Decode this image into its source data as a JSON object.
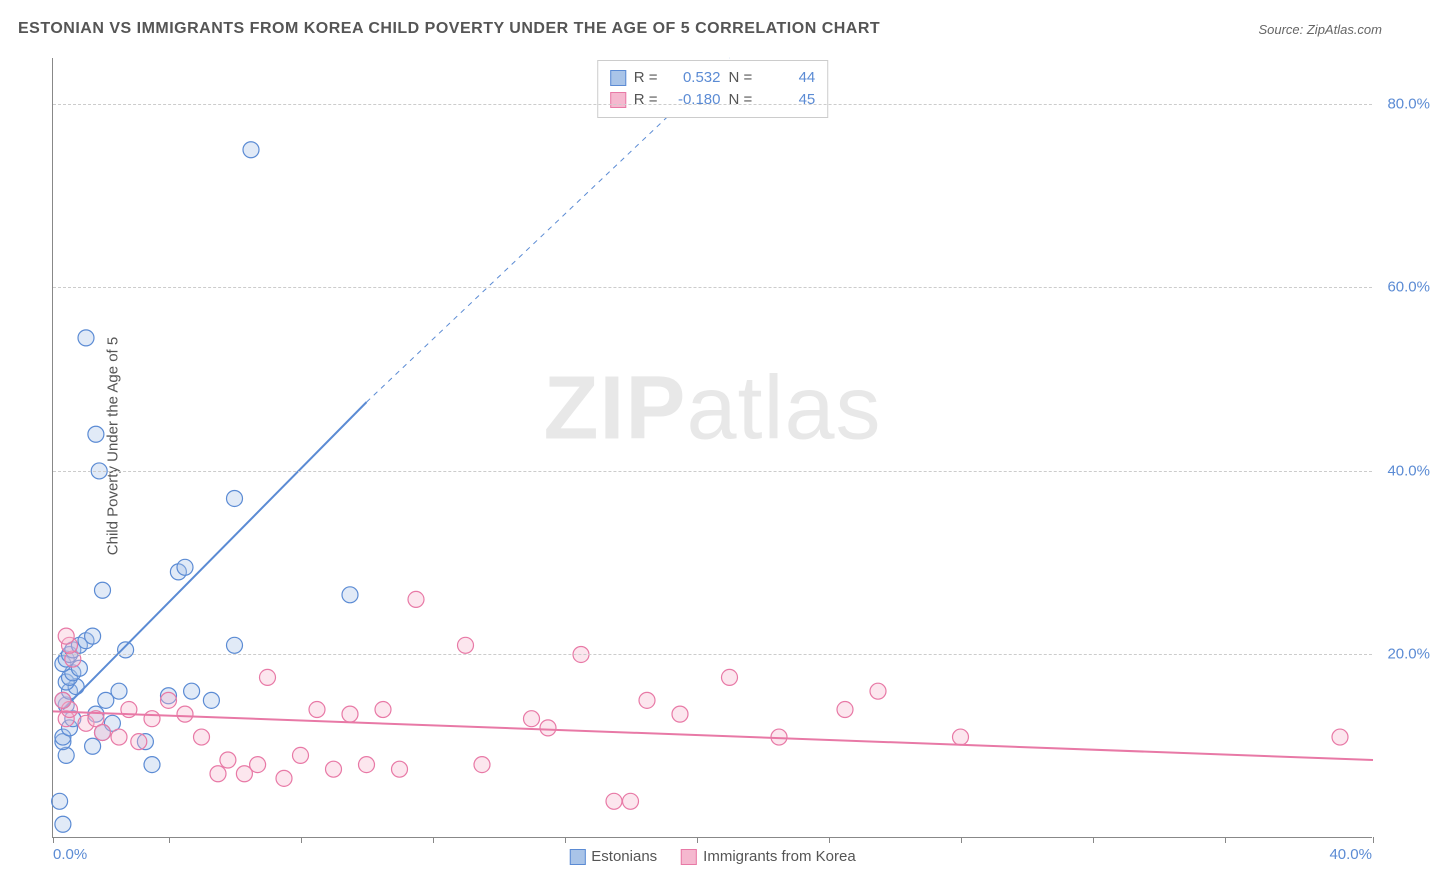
{
  "title": "ESTONIAN VS IMMIGRANTS FROM KOREA CHILD POVERTY UNDER THE AGE OF 5 CORRELATION CHART",
  "source_label": "Source: ",
  "source_value": "ZipAtlas.com",
  "ylabel": "Child Poverty Under the Age of 5",
  "watermark_bold": "ZIP",
  "watermark_rest": "atlas",
  "chart": {
    "type": "scatter",
    "background_color": "#ffffff",
    "grid_color": "#cccccc",
    "axis_color": "#888888",
    "xlim": [
      0,
      40
    ],
    "ylim": [
      0,
      85
    ],
    "ytick_values": [
      20,
      40,
      60,
      80
    ],
    "ytick_labels": [
      "20.0%",
      "40.0%",
      "60.0%",
      "80.0%"
    ],
    "xtick_positions": [
      0,
      3.5,
      7.5,
      11.5,
      15.5,
      19.5,
      23.5,
      27.5,
      31.5,
      35.5,
      40
    ],
    "xtick_label_left": "0.0%",
    "xtick_label_right": "40.0%",
    "marker_radius": 8,
    "marker_fill_opacity": 0.35,
    "marker_stroke_width": 1.2,
    "series": [
      {
        "key": "estonians",
        "label": "Estonians",
        "color": "#5b8bd4",
        "fill": "#a9c4e8",
        "R": "0.532",
        "N": "44",
        "points": [
          [
            0.3,
            1.5
          ],
          [
            0.2,
            4.0
          ],
          [
            0.4,
            9.0
          ],
          [
            0.3,
            10.5
          ],
          [
            0.3,
            11.0
          ],
          [
            0.5,
            12.0
          ],
          [
            0.6,
            13.0
          ],
          [
            0.4,
            14.5
          ],
          [
            0.3,
            15.0
          ],
          [
            0.5,
            16.0
          ],
          [
            0.7,
            16.5
          ],
          [
            0.4,
            17.0
          ],
          [
            0.5,
            17.5
          ],
          [
            0.6,
            18.0
          ],
          [
            0.8,
            18.5
          ],
          [
            0.3,
            19.0
          ],
          [
            0.4,
            19.5
          ],
          [
            0.5,
            20.0
          ],
          [
            0.6,
            20.5
          ],
          [
            0.8,
            21.0
          ],
          [
            1.2,
            10.0
          ],
          [
            1.5,
            11.5
          ],
          [
            1.8,
            12.5
          ],
          [
            1.3,
            13.5
          ],
          [
            1.6,
            15.0
          ],
          [
            2.0,
            16.0
          ],
          [
            1.0,
            21.5
          ],
          [
            1.2,
            22.0
          ],
          [
            1.5,
            27.0
          ],
          [
            2.2,
            20.5
          ],
          [
            2.8,
            10.5
          ],
          [
            3.0,
            8.0
          ],
          [
            3.5,
            15.5
          ],
          [
            4.2,
            16.0
          ],
          [
            5.5,
            21.0
          ],
          [
            3.8,
            29.0
          ],
          [
            4.0,
            29.5
          ],
          [
            5.5,
            37.0
          ],
          [
            1.4,
            40.0
          ],
          [
            1.3,
            44.0
          ],
          [
            1.0,
            54.5
          ],
          [
            6.0,
            75.0
          ],
          [
            9.0,
            26.5
          ],
          [
            4.8,
            15.0
          ]
        ],
        "trend": {
          "x1": 0.3,
          "y1": 14.0,
          "x2": 9.5,
          "y2": 47.5
        },
        "trend_dash": {
          "x1": 9.5,
          "y1": 47.5,
          "x2": 20.5,
          "y2": 85.0
        },
        "line_width": 2
      },
      {
        "key": "korea",
        "label": "Immigrants from Korea",
        "color": "#e879a6",
        "fill": "#f5b8cf",
        "R": "-0.180",
        "N": "45",
        "points": [
          [
            0.4,
            13.0
          ],
          [
            0.5,
            14.0
          ],
          [
            0.3,
            15.0
          ],
          [
            0.6,
            19.5
          ],
          [
            0.5,
            21.0
          ],
          [
            0.4,
            22.0
          ],
          [
            1.0,
            12.5
          ],
          [
            1.3,
            13.0
          ],
          [
            1.5,
            11.5
          ],
          [
            2.0,
            11.0
          ],
          [
            2.3,
            14.0
          ],
          [
            2.6,
            10.5
          ],
          [
            3.0,
            13.0
          ],
          [
            3.5,
            15.0
          ],
          [
            4.0,
            13.5
          ],
          [
            4.5,
            11.0
          ],
          [
            5.0,
            7.0
          ],
          [
            5.3,
            8.5
          ],
          [
            5.8,
            7.0
          ],
          [
            6.2,
            8.0
          ],
          [
            6.5,
            17.5
          ],
          [
            7.0,
            6.5
          ],
          [
            7.5,
            9.0
          ],
          [
            8.0,
            14.0
          ],
          [
            8.5,
            7.5
          ],
          [
            9.0,
            13.5
          ],
          [
            9.5,
            8.0
          ],
          [
            10.0,
            14.0
          ],
          [
            10.5,
            7.5
          ],
          [
            11.0,
            26.0
          ],
          [
            12.5,
            21.0
          ],
          [
            13.0,
            8.0
          ],
          [
            14.5,
            13.0
          ],
          [
            15.0,
            12.0
          ],
          [
            16.0,
            20.0
          ],
          [
            17.0,
            4.0
          ],
          [
            17.5,
            4.0
          ],
          [
            18.0,
            15.0
          ],
          [
            19.0,
            13.5
          ],
          [
            20.5,
            17.5
          ],
          [
            22.0,
            11.0
          ],
          [
            24.0,
            14.0
          ],
          [
            25.0,
            16.0
          ],
          [
            27.5,
            11.0
          ],
          [
            39.0,
            11.0
          ]
        ],
        "trend": {
          "x1": 0.0,
          "y1": 13.8,
          "x2": 40.0,
          "y2": 8.5
        },
        "line_width": 2
      }
    ]
  },
  "legend_top": {
    "r_label": "R =",
    "n_label": "N ="
  }
}
